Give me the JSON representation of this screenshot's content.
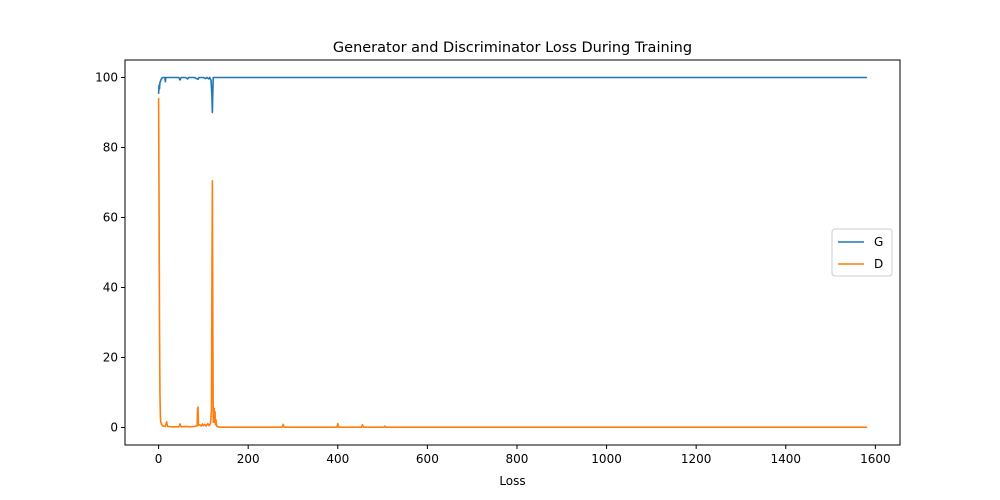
{
  "chart_data": {
    "type": "line",
    "title": "Generator and Discriminator Loss During Training",
    "xlabel": "Loss",
    "ylabel": "",
    "xlim": [
      -75,
      1655
    ],
    "ylim": [
      -5,
      105
    ],
    "xticks": [
      0,
      200,
      400,
      600,
      800,
      1000,
      1200,
      1400,
      1600
    ],
    "yticks": [
      0,
      20,
      40,
      60,
      80,
      100
    ],
    "grid": false,
    "legend_position": "center-right",
    "series": [
      {
        "name": "G",
        "color": "#1f77b4",
        "points": [
          [
            0,
            95.5
          ],
          [
            1,
            97.8
          ],
          [
            2,
            96.8
          ],
          [
            3,
            98.5
          ],
          [
            5,
            99.3
          ],
          [
            7,
            99.8
          ],
          [
            10,
            100
          ],
          [
            14,
            100
          ],
          [
            15,
            98.8
          ],
          [
            16,
            100
          ],
          [
            25,
            100
          ],
          [
            35,
            100
          ],
          [
            45,
            100
          ],
          [
            48,
            99.3
          ],
          [
            50,
            100
          ],
          [
            60,
            100
          ],
          [
            65,
            99.6
          ],
          [
            67,
            100
          ],
          [
            80,
            100
          ],
          [
            88,
            99.5
          ],
          [
            90,
            100
          ],
          [
            100,
            100
          ],
          [
            105,
            99.7
          ],
          [
            108,
            100
          ],
          [
            112,
            99.6
          ],
          [
            114,
            100
          ],
          [
            117,
            99.2
          ],
          [
            119,
            95
          ],
          [
            120,
            90
          ],
          [
            121,
            96
          ],
          [
            122,
            100
          ],
          [
            130,
            100
          ],
          [
            200,
            100
          ],
          [
            400,
            100
          ],
          [
            600,
            100
          ],
          [
            800,
            100
          ],
          [
            1000,
            100
          ],
          [
            1200,
            100
          ],
          [
            1400,
            100
          ],
          [
            1580,
            100
          ]
        ]
      },
      {
        "name": "D",
        "color": "#ff7f0e",
        "points": [
          [
            0,
            94
          ],
          [
            1,
            65
          ],
          [
            2,
            30
          ],
          [
            3,
            10
          ],
          [
            4,
            3
          ],
          [
            5,
            1.5
          ],
          [
            7,
            0.8
          ],
          [
            10,
            0.4
          ],
          [
            15,
            0.3
          ],
          [
            18,
            1.6
          ],
          [
            20,
            0.3
          ],
          [
            30,
            0.2
          ],
          [
            45,
            0.2
          ],
          [
            48,
            1.0
          ],
          [
            50,
            0.2
          ],
          [
            60,
            0.3
          ],
          [
            70,
            0.2
          ],
          [
            80,
            0.3
          ],
          [
            86,
            0.5
          ],
          [
            87,
            5.5
          ],
          [
            88,
            5.8
          ],
          [
            89,
            0.6
          ],
          [
            92,
            0.8
          ],
          [
            95,
            0.4
          ],
          [
            98,
            1.0
          ],
          [
            100,
            0.5
          ],
          [
            103,
            0.9
          ],
          [
            106,
            0.4
          ],
          [
            110,
            1.1
          ],
          [
            113,
            0.5
          ],
          [
            116,
            1.2
          ],
          [
            118,
            5
          ],
          [
            119,
            40
          ],
          [
            120,
            70.5
          ],
          [
            121,
            30
          ],
          [
            122,
            1.5
          ],
          [
            123,
            2
          ],
          [
            124,
            5.5
          ],
          [
            125,
            1.5
          ],
          [
            126,
            4.5
          ],
          [
            127,
            0.8
          ],
          [
            128,
            2.2
          ],
          [
            130,
            0.3
          ],
          [
            135,
            0.1
          ],
          [
            200,
            0.1
          ],
          [
            276,
            0.1
          ],
          [
            278,
            0.9
          ],
          [
            280,
            0.1
          ],
          [
            398,
            0.1
          ],
          [
            400,
            1.1
          ],
          [
            402,
            0.1
          ],
          [
            453,
            0.1
          ],
          [
            455,
            0.8
          ],
          [
            457,
            0.1
          ],
          [
            503,
            0.1
          ],
          [
            505,
            0.4
          ],
          [
            507,
            0.1
          ],
          [
            600,
            0.1
          ],
          [
            800,
            0.1
          ],
          [
            1000,
            0.1
          ],
          [
            1200,
            0.1
          ],
          [
            1400,
            0.1
          ],
          [
            1580,
            0.1
          ]
        ]
      }
    ]
  }
}
